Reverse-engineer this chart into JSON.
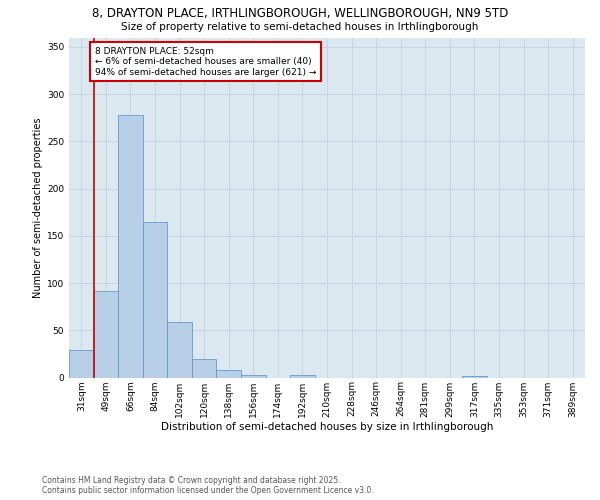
{
  "title1": "8, DRAYTON PLACE, IRTHLINGBOROUGH, WELLINGBOROUGH, NN9 5TD",
  "title2": "Size of property relative to semi-detached houses in Irthlingborough",
  "xlabel": "Distribution of semi-detached houses by size in Irthlingborough",
  "ylabel": "Number of semi-detached properties",
  "categories": [
    "31sqm",
    "49sqm",
    "66sqm",
    "84sqm",
    "102sqm",
    "120sqm",
    "138sqm",
    "156sqm",
    "174sqm",
    "192sqm",
    "210sqm",
    "228sqm",
    "246sqm",
    "264sqm",
    "281sqm",
    "299sqm",
    "317sqm",
    "335sqm",
    "353sqm",
    "371sqm",
    "389sqm"
  ],
  "values": [
    29,
    92,
    278,
    165,
    59,
    20,
    8,
    3,
    0,
    3,
    0,
    0,
    0,
    0,
    0,
    0,
    2,
    0,
    0,
    0,
    0
  ],
  "bar_color": "#b8cfe8",
  "bar_edge_color": "#6699cc",
  "subject_line_color": "#cc0000",
  "annotation_title": "8 DRAYTON PLACE: 52sqm",
  "annotation_line1": "← 6% of semi-detached houses are smaller (40)",
  "annotation_line2": "94% of semi-detached houses are larger (621) →",
  "annotation_box_color": "#ffffff",
  "annotation_box_edge_color": "#cc0000",
  "grid_color": "#c8d4e4",
  "background_color": "#dce8f0",
  "footer1": "Contains HM Land Registry data © Crown copyright and database right 2025.",
  "footer2": "Contains public sector information licensed under the Open Government Licence v3.0.",
  "ylim": [
    0,
    360
  ],
  "yticks": [
    0,
    50,
    100,
    150,
    200,
    250,
    300,
    350
  ],
  "title1_fontsize": 8.5,
  "title2_fontsize": 7.5,
  "xlabel_fontsize": 7.5,
  "ylabel_fontsize": 7,
  "tick_fontsize": 6.5,
  "annotation_fontsize": 6.5,
  "footer_fontsize": 5.5
}
